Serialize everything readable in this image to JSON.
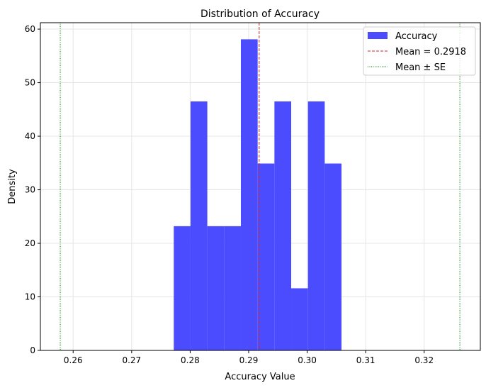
{
  "chart_data": {
    "type": "bar",
    "title": "Distribution of Accuracy",
    "xlabel": "Accuracy Value",
    "ylabel": "Density",
    "xlim": [
      0.2544,
      0.3296
    ],
    "ylim": [
      0,
      61.2
    ],
    "grid": true,
    "legend_placement": "top-right",
    "xticks": [
      "0.26",
      "0.27",
      "0.28",
      "0.29",
      "0.30",
      "0.31",
      "0.32"
    ],
    "xtick_values": [
      0.26,
      0.27,
      0.28,
      0.29,
      0.3,
      0.31,
      0.32
    ],
    "yticks": [
      "0",
      "10",
      "20",
      "30",
      "40",
      "50",
      "60"
    ],
    "ytick_values": [
      0,
      10,
      20,
      30,
      40,
      50,
      60
    ],
    "bin_edges": [
      0.2772,
      0.30587
    ],
    "bins": 10,
    "values": [
      23.2,
      46.5,
      23.2,
      23.2,
      58.1,
      34.9,
      46.5,
      11.6,
      46.5,
      34.9
    ],
    "bar_color": "#4c4cff",
    "mean": 0.2918,
    "se_lines": [
      0.2578,
      0.3261
    ],
    "legend": [
      "Accuracy",
      "Mean = 0.2918",
      "Mean ± SE"
    ],
    "mean_color": "#d62728",
    "se_color": "#008000"
  }
}
